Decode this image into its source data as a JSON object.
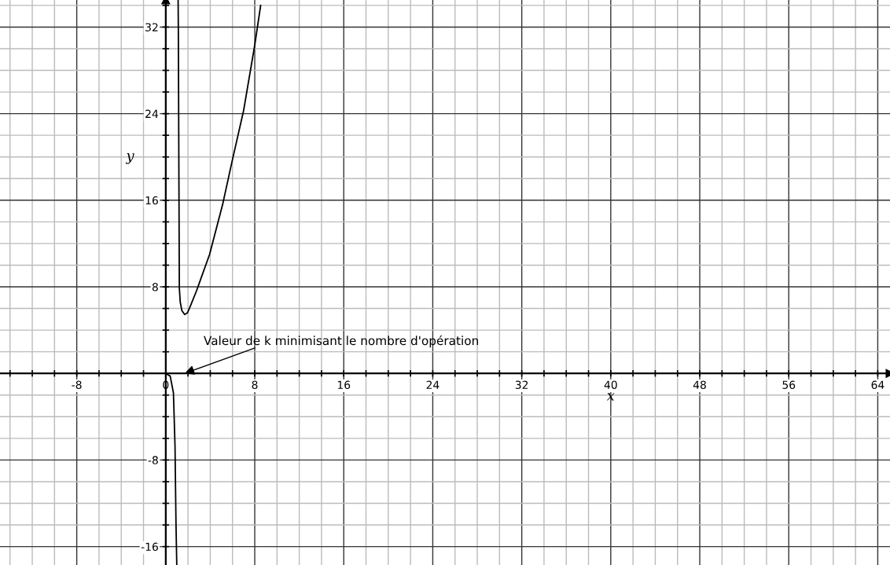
{
  "chart_data": {
    "type": "line",
    "xlabel": "x",
    "ylabel": "y",
    "series": [
      {
        "color": "#000000",
        "x": [
          0,
          0.4,
          0.69,
          0.83,
          0.92,
          0.99
        ],
        "values": [
          0,
          -0.25,
          -1.8,
          -6.65,
          -13.9,
          -17.7
        ]
      },
      {
        "color": "#000000",
        "x": [
          1.11,
          1.13,
          1.22,
          1.3,
          1.45,
          1.7,
          1.95,
          2.2,
          2.76,
          3.94,
          5.11,
          5.94,
          7.0,
          8.01,
          8.53
        ],
        "values": [
          34.5,
          32,
          7.9,
          6.6,
          5.8,
          5.44,
          5.6,
          6.2,
          7.62,
          11.0,
          15.6,
          19.5,
          24.3,
          30.4,
          34.0
        ]
      }
    ],
    "annotations": [
      "Valeur de k minimisant le nombre d'opération"
    ],
    "xlim": [
      -14.9,
      65.1
    ],
    "ylim": [
      -17.7,
      34.5
    ],
    "xticks": [
      {
        "value": -14,
        "label": null
      },
      {
        "value": -12,
        "label": null
      },
      {
        "value": -10,
        "label": null
      },
      -8,
      {
        "value": -6,
        "label": null
      },
      {
        "value": -4,
        "label": null
      },
      {
        "value": -2,
        "label": null
      },
      0,
      {
        "value": 2,
        "label": null
      },
      {
        "value": 4,
        "label": null
      },
      {
        "value": 6,
        "label": null
      },
      8,
      {
        "value": 10,
        "label": null
      },
      {
        "value": 12,
        "label": null
      },
      {
        "value": 14,
        "label": null
      },
      16,
      {
        "value": 18,
        "label": null
      },
      {
        "value": 20,
        "label": null
      },
      {
        "value": 22,
        "label": null
      },
      24,
      {
        "value": 26,
        "label": null
      },
      {
        "value": 28,
        "label": null
      },
      {
        "value": 30,
        "label": null
      },
      32,
      {
        "value": 34,
        "label": null
      },
      {
        "value": 36,
        "label": null
      },
      {
        "value": 38,
        "label": null
      },
      40,
      {
        "value": 42,
        "label": null
      },
      {
        "value": 44,
        "label": null
      },
      {
        "value": 46,
        "label": null
      },
      48,
      {
        "value": 50,
        "label": null
      },
      {
        "value": 52,
        "label": null
      },
      {
        "value": 54,
        "label": null
      },
      56,
      {
        "value": 58,
        "label": null
      },
      {
        "value": 60,
        "label": null
      },
      {
        "value": 62,
        "label": null
      },
      64
    ],
    "yticks": [
      -16,
      {
        "value": -14,
        "label": null
      },
      {
        "value": -12,
        "label": null
      },
      {
        "value": -10,
        "label": null
      },
      -8,
      {
        "value": -6,
        "label": null
      },
      {
        "value": -4,
        "label": null
      },
      {
        "value": -2,
        "label": null
      },
      {
        "value": 2,
        "label": null
      },
      {
        "value": 4,
        "label": null
      },
      {
        "value": 6,
        "label": null
      },
      8,
      {
        "value": 10,
        "label": null
      },
      {
        "value": 12,
        "label": null
      },
      {
        "value": 14,
        "label": null
      },
      16,
      {
        "value": 18,
        "label": null
      },
      {
        "value": 20,
        "label": null
      },
      {
        "value": 22,
        "label": null
      },
      24,
      {
        "value": 26,
        "label": null
      },
      {
        "value": 28,
        "label": null
      },
      {
        "value": 30,
        "label": null
      },
      32,
      {
        "value": 34,
        "label": null
      }
    ],
    "grid": true,
    "legend": false
  }
}
